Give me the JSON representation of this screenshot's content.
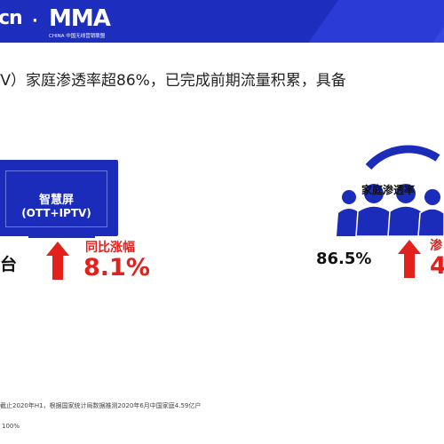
{
  "header": {
    "logo_left": "cn",
    "separator": "·",
    "mma": "MMA",
    "mma_sub": "CHINA 中国无线营销联盟",
    "accent_color": "#1d2dbd"
  },
  "headline": "TV）家庭渗透率超86%，已完成前期流量积累，具备",
  "left_panel": {
    "tv_title": "智慧屏",
    "tv_subtitle": "(OTT+IPTV)",
    "value_suffix": "台",
    "growth_label": "同比涨幅",
    "growth_value": "8.1%"
  },
  "right_panel": {
    "icon_label": "家庭渗透率",
    "value": "86.5%",
    "growth_label": "渗",
    "growth_value": "4"
  },
  "footnote": "截止2020年H1，根据国家统计局数据推测2020年6月中国家庭4.59亿户",
  "footnote2": "100%",
  "colors": {
    "blue": "#1b2cbb",
    "red": "#e2211c"
  }
}
